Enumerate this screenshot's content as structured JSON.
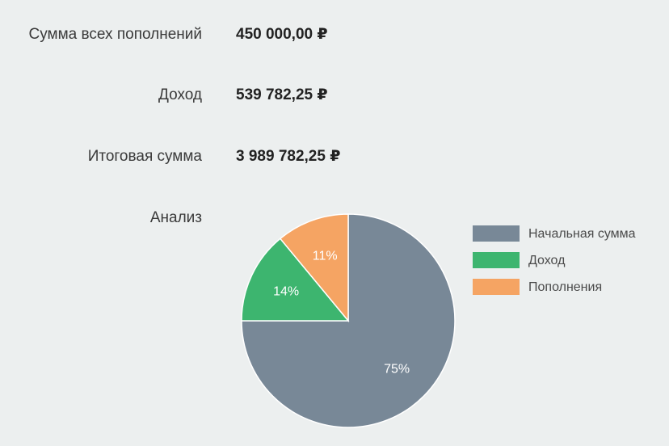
{
  "summary": {
    "deposits": {
      "label": "Сумма всех пополнений",
      "value": "450 000,00 ₽"
    },
    "income": {
      "label": "Доход",
      "value": "539 782,25 ₽"
    },
    "total": {
      "label": "Итоговая сумма",
      "value": "3 989 782,25 ₽"
    },
    "analysis_label": "Анализ"
  },
  "chart_data": {
    "type": "pie",
    "slices": [
      {
        "name": "Начальная сумма",
        "value": 75,
        "label": "75%",
        "color": "#788897"
      },
      {
        "name": "Доход",
        "value": 14,
        "label": "14%",
        "color": "#3db56f"
      },
      {
        "name": "Пополнения",
        "value": 11,
        "label": "11%",
        "color": "#f5a463"
      }
    ],
    "legend_position": "right"
  }
}
